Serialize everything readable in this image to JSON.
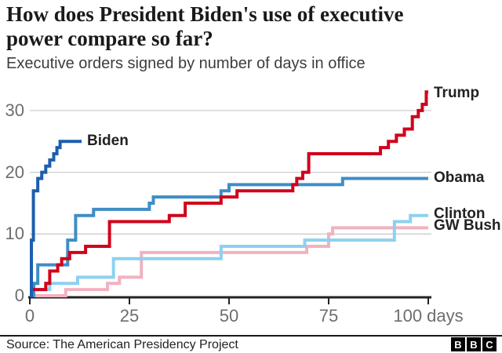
{
  "header": {
    "note": ""
  },
  "colors": {
    "axis": "#222222",
    "grid": "#cccccc",
    "tick_text": "#6d6d6d",
    "label_text": "#222222"
  },
  "footer": {
    "source": "Source: The American Presidency Project",
    "logo_letters": [
      "B",
      "B",
      "C"
    ]
  },
  "chart_data": {
    "type": "line",
    "step": true,
    "title": "How does President Biden's use of executive power compare so far?",
    "title_lines": [
      "How does President Biden's use of executive",
      "power compare so far?"
    ],
    "subtitle": "Executive orders signed by number of days in office",
    "xlabel": "days in office",
    "ylabel": "executive orders signed",
    "xlim": [
      0,
      100
    ],
    "ylim": [
      0,
      33
    ],
    "x_ticks": [
      0,
      25,
      50,
      75,
      100
    ],
    "x_tick_labels": [
      "0",
      "25",
      "50",
      "75",
      "100 days"
    ],
    "y_ticks": [
      0,
      10,
      20,
      30
    ],
    "y_tick_labels": [
      "0",
      "10",
      "20",
      "30"
    ],
    "y_gridlines": [
      10,
      20,
      30
    ],
    "grid": true,
    "legend_position": "line-end-labels",
    "series": [
      {
        "name": "GW Bush",
        "color": "#f2b1c0",
        "end_day": 100,
        "final_value": 11,
        "points": [
          [
            0,
            0
          ],
          [
            9,
            1
          ],
          [
            19.5,
            2
          ],
          [
            22.5,
            3
          ],
          [
            28,
            7
          ],
          [
            69.5,
            8
          ],
          [
            75,
            10
          ],
          [
            76,
            11
          ]
        ]
      },
      {
        "name": "Clinton",
        "color": "#8dd1f0",
        "end_day": 100,
        "final_value": 13,
        "points": [
          [
            0,
            0
          ],
          [
            0.6,
            1
          ],
          [
            5,
            2
          ],
          [
            12,
            3
          ],
          [
            21,
            6
          ],
          [
            48,
            8
          ],
          [
            69,
            9
          ],
          [
            91.5,
            12
          ],
          [
            95.5,
            13
          ]
        ]
      },
      {
        "name": "Obama",
        "color": "#3f8dc6",
        "end_day": 100,
        "final_value": 19,
        "points": [
          [
            0,
            0
          ],
          [
            1,
            2
          ],
          [
            2,
            5
          ],
          [
            9.5,
            9
          ],
          [
            11.5,
            13
          ],
          [
            16,
            14
          ],
          [
            30,
            15
          ],
          [
            31,
            16
          ],
          [
            48,
            17
          ],
          [
            50,
            18
          ],
          [
            78.5,
            19
          ]
        ]
      },
      {
        "name": "Trump",
        "color": "#d0021b",
        "end_day": 100,
        "final_value": 33,
        "points": [
          [
            0,
            0
          ],
          [
            0.4,
            1
          ],
          [
            4,
            2
          ],
          [
            5,
            4
          ],
          [
            7,
            5
          ],
          [
            8,
            6
          ],
          [
            10,
            7
          ],
          [
            14,
            8
          ],
          [
            20,
            12
          ],
          [
            35,
            13
          ],
          [
            39,
            15
          ],
          [
            48,
            16
          ],
          [
            52,
            17
          ],
          [
            66,
            18
          ],
          [
            67,
            19
          ],
          [
            68.5,
            20
          ],
          [
            70,
            23
          ],
          [
            88,
            24
          ],
          [
            90,
            25
          ],
          [
            92,
            26
          ],
          [
            94,
            27
          ],
          [
            96,
            29
          ],
          [
            97.5,
            30
          ],
          [
            98.5,
            31
          ],
          [
            99.5,
            33
          ]
        ]
      },
      {
        "name": "Biden",
        "color": "#1b5fad",
        "end_day": 13,
        "final_value": 25,
        "points": [
          [
            0,
            0
          ],
          [
            0.4,
            9
          ],
          [
            0.9,
            17
          ],
          [
            2,
            19
          ],
          [
            3,
            20
          ],
          [
            4,
            21
          ],
          [
            5,
            22
          ],
          [
            6,
            23
          ],
          [
            6.8,
            24
          ],
          [
            7.6,
            25
          ]
        ]
      }
    ]
  }
}
